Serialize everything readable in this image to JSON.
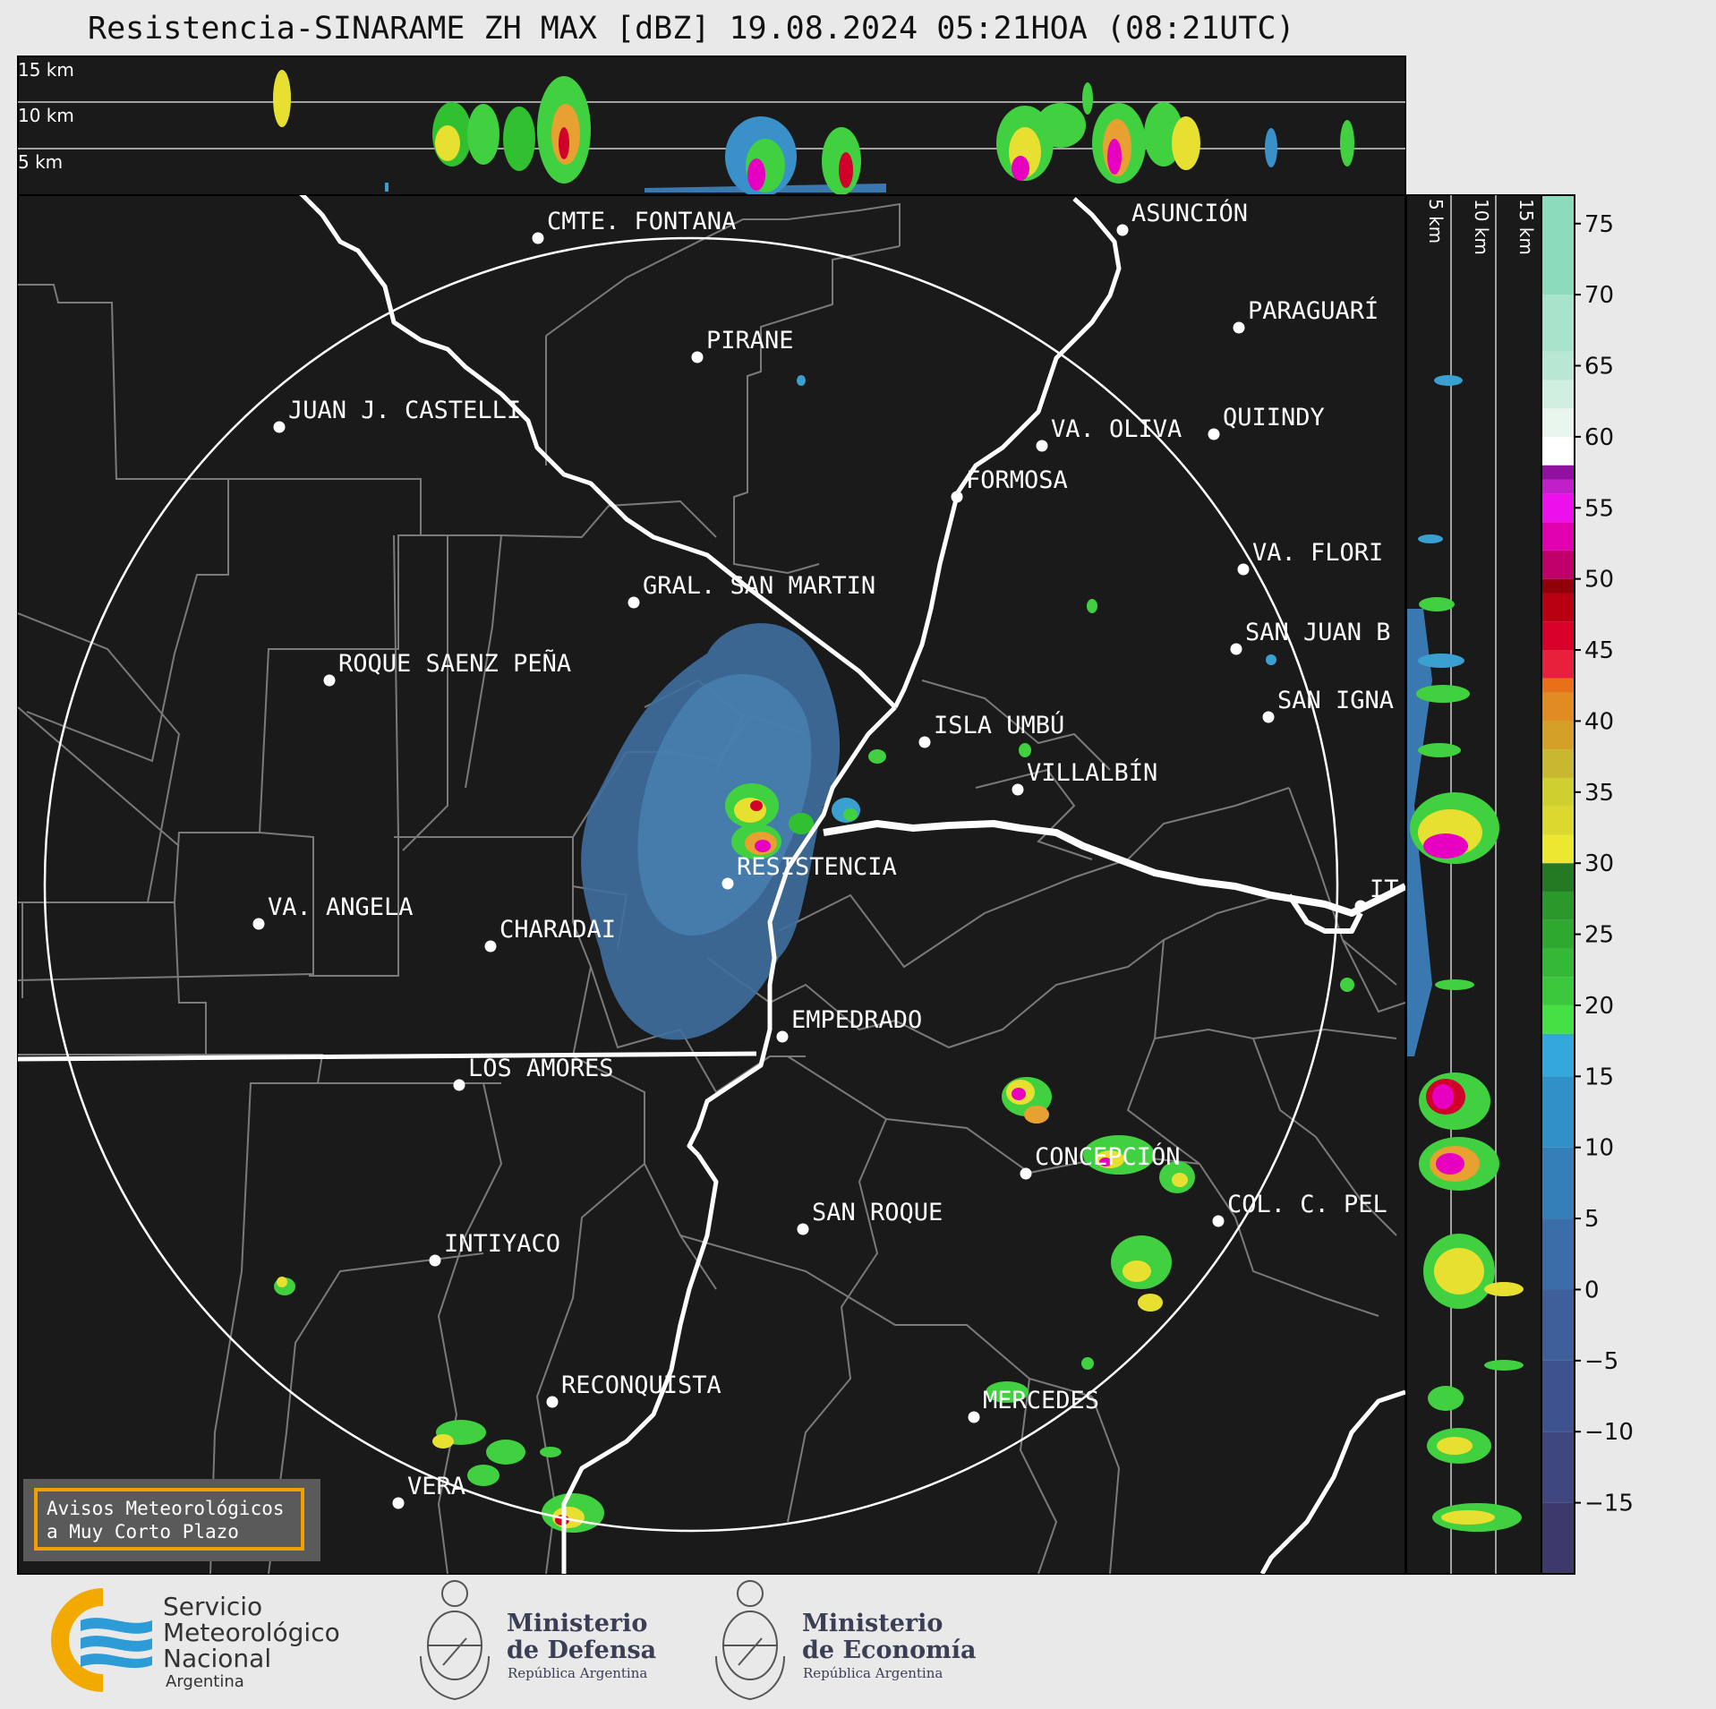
{
  "title": "Resistencia-SINARAME ZH MAX [dBZ] 19.08.2024 05:21HOA (08:21UTC)",
  "top_profile": {
    "height_labels": [
      "15 km",
      "10 km",
      "5 km"
    ]
  },
  "side_profile": {
    "height_labels": [
      "5 km",
      "10 km",
      "15 km"
    ]
  },
  "colorbar": {
    "ticks": [
      "75",
      "70",
      "65",
      "60",
      "55",
      "50",
      "45",
      "40",
      "35",
      "30",
      "25",
      "20",
      "15",
      "10",
      "5",
      "0",
      "−5",
      "−10",
      "−15"
    ],
    "min": -20,
    "max": 77
  },
  "cities": [
    {
      "name": "CMTE. FONTANA"
    },
    {
      "name": "ASUNCIÓN"
    },
    {
      "name": "PARAGUARÍ"
    },
    {
      "name": "PIRANE"
    },
    {
      "name": "JUAN J. CASTELLI"
    },
    {
      "name": "VA. OLIVA"
    },
    {
      "name": "QUIINDY"
    },
    {
      "name": "FORMOSA"
    },
    {
      "name": "VA. FLORI"
    },
    {
      "name": "GRAL. SAN MARTIN"
    },
    {
      "name": "SAN JUAN B"
    },
    {
      "name": "ROQUE SAENZ PEÑA"
    },
    {
      "name": "SAN IGNA"
    },
    {
      "name": "ISLA UMBÚ"
    },
    {
      "name": "VILLALBÍN"
    },
    {
      "name": "RESISTENCIA"
    },
    {
      "name": "IT"
    },
    {
      "name": "VA. ANGELA"
    },
    {
      "name": "CHARADAI"
    },
    {
      "name": "EMPEDRADO"
    },
    {
      "name": "LOS AMORES"
    },
    {
      "name": "CONCEPCIÓN"
    },
    {
      "name": "SAN ROQUE"
    },
    {
      "name": "COL. C. PEL"
    },
    {
      "name": "INTIYACO"
    },
    {
      "name": "RECONQUISTA"
    },
    {
      "name": "MERCEDES"
    },
    {
      "name": "VERA"
    }
  ],
  "banner": {
    "line1": "Avisos Meteorológicos",
    "line2": "a Muy Corto Plazo"
  },
  "logos": {
    "smn": {
      "line1": "Servicio",
      "line2": "Meteorológico",
      "line3": "Nacional",
      "line4": "Argentina"
    },
    "defensa": {
      "line1": "Ministerio",
      "line2": "de Defensa",
      "line3": "República Argentina"
    },
    "economia": {
      "line1": "Ministerio",
      "line2": "de Economía",
      "line3": "República Argentina"
    }
  },
  "colors": {
    "background": "#1a1a1a",
    "accent": "#f0a000"
  }
}
